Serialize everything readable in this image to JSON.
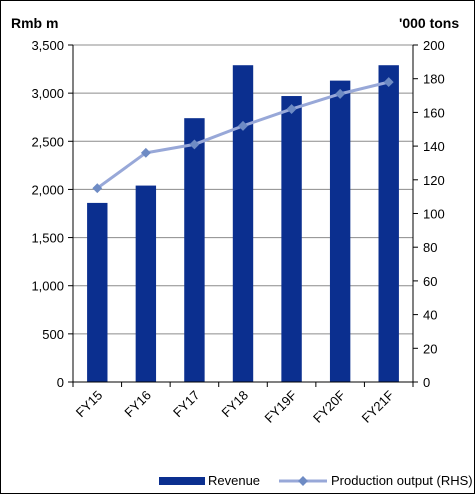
{
  "chart_data": {
    "type": "bar",
    "categories": [
      "FY15",
      "FY16",
      "FY17",
      "FY18",
      "FY19F",
      "FY20F",
      "FY21F"
    ],
    "left_axis": {
      "unit_label": "Rmb m",
      "ylim": [
        0,
        3500
      ],
      "ticks": [
        "0",
        "500",
        "1,000",
        "1,500",
        "2,000",
        "2,500",
        "3,000",
        "3,500"
      ]
    },
    "right_axis": {
      "unit_label": "'000 tons",
      "ylim": [
        0,
        200
      ],
      "ticks": [
        "0",
        "20",
        "40",
        "60",
        "80",
        "100",
        "120",
        "140",
        "160",
        "180",
        "200"
      ]
    },
    "series": [
      {
        "name": "Revenue",
        "type": "bar",
        "axis": "left",
        "color": "#0B2F8F",
        "values": [
          1860,
          2040,
          2740,
          3290,
          2970,
          3130,
          3290
        ]
      },
      {
        "name": "Production output (RHS)",
        "type": "line",
        "axis": "right",
        "color": "#98A8D8",
        "marker_color": "#6E8BC4",
        "values": [
          115,
          136,
          141,
          152,
          162,
          171,
          178
        ]
      }
    ],
    "grid": true,
    "legend_position": "bottom"
  }
}
